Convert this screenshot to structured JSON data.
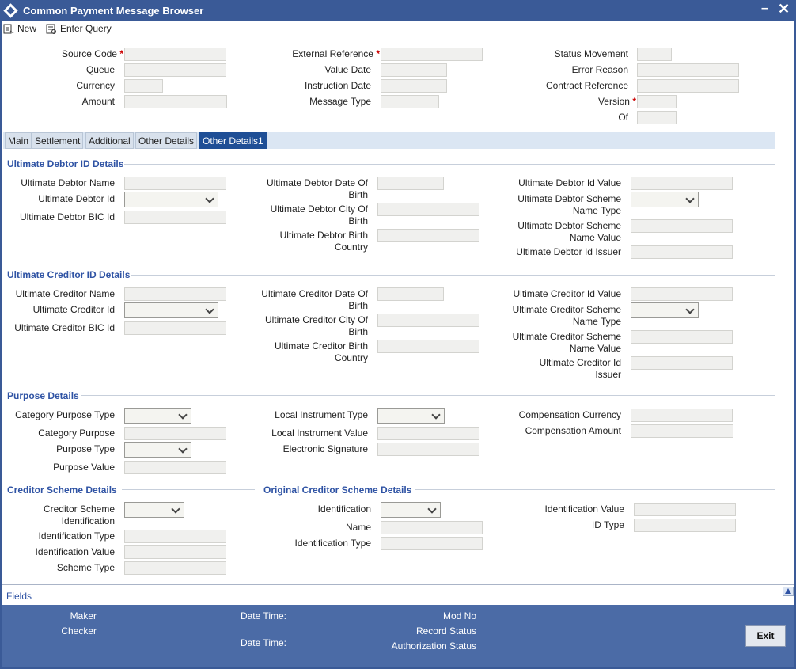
{
  "window": {
    "title": "Common Payment Message Browser"
  },
  "toolbar": {
    "new_label": "New",
    "enter_query_label": "Enter Query"
  },
  "header": {
    "source_code": "Source Code",
    "queue": "Queue",
    "currency": "Currency",
    "amount": "Amount",
    "external_reference": "External Reference",
    "value_date": "Value Date",
    "instruction_date": "Instruction Date",
    "message_type": "Message Type",
    "status_movement": "Status Movement",
    "error_reason": "Error Reason",
    "contract_reference": "Contract Reference",
    "version": "Version",
    "of": "Of",
    "required_mark": "*"
  },
  "tabs": [
    "Main",
    "Settlement",
    "Additional",
    "Other Details",
    "Other Details1"
  ],
  "ultimate_debtor": {
    "section_title": "Ultimate Debtor ID Details",
    "name": "Ultimate Debtor Name",
    "id": "Ultimate Debtor Id",
    "bic_id": "Ultimate Debtor BIC Id",
    "date_of_birth_1": "Ultimate Debtor Date Of",
    "date_of_birth_2": "Birth",
    "city_of_birth_1": "Ultimate Debtor City Of",
    "city_of_birth_2": "Birth",
    "birth_country_1": "Ultimate Debtor Birth",
    "birth_country_2": "Country",
    "id_value": "Ultimate Debtor Id Value",
    "scheme_name_type_1": "Ultimate Debtor Scheme",
    "scheme_name_type_2": "Name Type",
    "scheme_name_value_1": "Ultimate Debtor Scheme",
    "scheme_name_value_2": "Name Value",
    "id_issuer": "Ultimate Debtor Id Issuer"
  },
  "ultimate_creditor": {
    "section_title": "Ultimate Creditor ID Details",
    "name": "Ultimate Creditor Name",
    "id": "Ultimate Creditor Id",
    "bic_id": "Ultimate Creditor BIC Id",
    "date_of_birth_1": "Ultimate Creditor Date Of",
    "date_of_birth_2": "Birth",
    "city_of_birth_1": "Ultimate Creditor City Of",
    "city_of_birth_2": "Birth",
    "birth_country_1": "Ultimate Creditor Birth",
    "birth_country_2": "Country",
    "id_value": "Ultimate Creditor Id Value",
    "scheme_name_type_1": "Ultimate Creditor Scheme",
    "scheme_name_type_2": "Name Type",
    "scheme_name_value_1": "Ultimate Creditor Scheme",
    "scheme_name_value_2": "Name Value",
    "id_issuer_1": "Ultimate Creditor Id",
    "id_issuer_2": "Issuer"
  },
  "purpose": {
    "section_title": "Purpose Details",
    "category_purpose_type": "Category Purpose Type",
    "category_purpose": "Category Purpose",
    "purpose_type": "Purpose Type",
    "purpose_value": "Purpose Value",
    "local_instrument_type": "Local Instrument Type",
    "local_instrument_value": "Local Instrument Value",
    "electronic_signature": "Electronic Signature",
    "compensation_currency": "Compensation Currency",
    "compensation_amount": "Compensation Amount"
  },
  "creditor_scheme": {
    "section_title": "Creditor Scheme Details",
    "identification_1": "Creditor Scheme",
    "identification_2": "Identification",
    "identification_type": "Identification Type",
    "identification_value": "Identification Value",
    "scheme_type": "Scheme Type"
  },
  "original_creditor_scheme": {
    "section_title": "Original Creditor Scheme Details",
    "identification": "Identification",
    "name": "Name",
    "identification_type": "Identification Type",
    "identification_value": "Identification Value",
    "id_type": "ID Type"
  },
  "fields_bar": {
    "label": "Fields"
  },
  "footer": {
    "maker": "Maker",
    "checker": "Checker",
    "date_time_1": "Date Time:",
    "date_time_2": "Date Time:",
    "mod_no": "Mod No",
    "record_status": "Record Status",
    "authorization_status": "Authorization Status",
    "exit_label": "Exit"
  }
}
